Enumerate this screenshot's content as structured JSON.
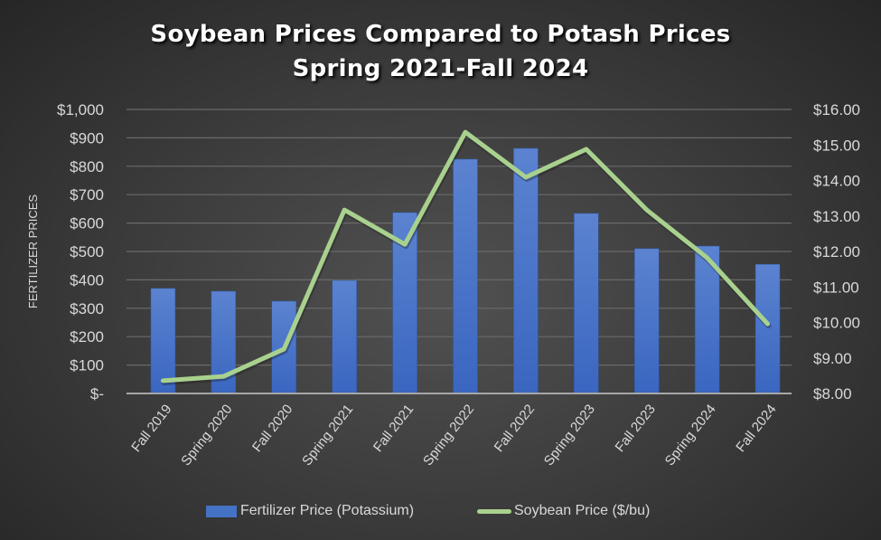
{
  "chart_data": {
    "type": "bar+line",
    "title": "Soybean Prices Compared to Potash Prices",
    "subtitle": "Spring 2021-Fall 2024",
    "categories": [
      "Fall 2019",
      "Spring 2020",
      "Fall 2020",
      "Spring 2021",
      "Fall 2021",
      "Spring 2022",
      "Fall 2022",
      "Spring 2023",
      "Fall 2023",
      "Spring 2024",
      "Fall 2024"
    ],
    "series": [
      {
        "name": "Fertilizer Price (Potassium)",
        "type": "bar",
        "axis": "left",
        "color": "#4472c4",
        "values": [
          370,
          360,
          325,
          398,
          637,
          825,
          863,
          634,
          510,
          519,
          455
        ]
      },
      {
        "name": "Soybean Price ($/bu)",
        "type": "line",
        "axis": "right",
        "color": "#a9d18e",
        "values": [
          8.36,
          8.48,
          9.25,
          13.17,
          12.2,
          15.36,
          14.09,
          14.88,
          13.17,
          11.82,
          9.96
        ]
      }
    ],
    "ylabel": "FERTILIZER PRICES",
    "y_left": {
      "range": [
        0,
        1000
      ],
      "ticks": [
        "$-",
        "$100",
        "$200",
        "$300",
        "$400",
        "$500",
        "$600",
        "$700",
        "$800",
        "$900",
        "$1,000"
      ]
    },
    "y_right": {
      "range": [
        8,
        16
      ],
      "ticks": [
        "$8.00",
        "$9.00",
        "$10.00",
        "$11.00",
        "$12.00",
        "$13.00",
        "$14.00",
        "$15.00",
        "$16.00"
      ]
    },
    "grid": true,
    "legend_position": "bottom"
  },
  "title_line1": "Soybean Prices Compared to Potash Prices",
  "title_line2": "Spring 2021-Fall 2024",
  "legend": {
    "bar_label": "Fertilizer Price (Potassium)",
    "line_label": "Soybean Price ($/bu)"
  }
}
